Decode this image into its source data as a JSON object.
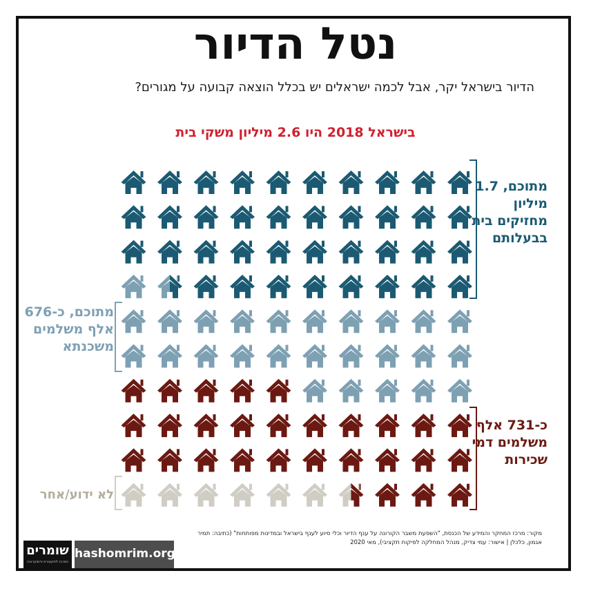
{
  "title": "נטל הדיור",
  "subtitle": "הדיור בישראל יקר, אבל לכמה ישראלים יש בכלל הוצאה קבועה על מגורים?",
  "headline": "בישראל 2018 היו 2.6 מיליון משקי בית",
  "labels": {
    "owners": "מתוכם, 1.7 מיליון מחזיקים בית בבעלותם",
    "mortgage": "מתוכם, כ-676 אלף משלמים משכנתא",
    "renters": "כ-731 אלף משלמים דמי שכירות",
    "unknown": "לא ידוע/אחר"
  },
  "source": "מקור: מרכז המחקר והמידע של הכנסת, \"השפעת משבר הקורונה על ענף הדיור וכלי סיוע לענף בישראל ובמדינות מפותחות\" (כתיבה: תמיר אגמון, כלכלן | אישור: עמי צדיק, מנהל המחלקה לפיקוח תקציבי), מאי 2020",
  "logo": {
    "mark": "שומרים",
    "tagline": "המרכז לתקשורת ודמוקרטיה"
  },
  "url": "hashomrim.org",
  "colors": {
    "owners_no_mortgage": "#1b5a72",
    "mortgage": "#7ea0b3",
    "renters": "#6b1912",
    "unknown": "#cfcdc4",
    "headline": "#d0202e"
  },
  "chart_data": {
    "type": "icon-array",
    "unit": "house icons, filled right-to-left, top-to-bottom",
    "total_households": "2.6 מיליון",
    "segments": [
      {
        "key": "owners_no_mortgage",
        "icons": 38.5
      },
      {
        "key": "mortgage",
        "icons": 26.5
      },
      {
        "key": "renters",
        "icons": 28.5
      },
      {
        "key": "unknown",
        "icons": 6.5
      }
    ],
    "rows": 10,
    "columns": 10
  }
}
